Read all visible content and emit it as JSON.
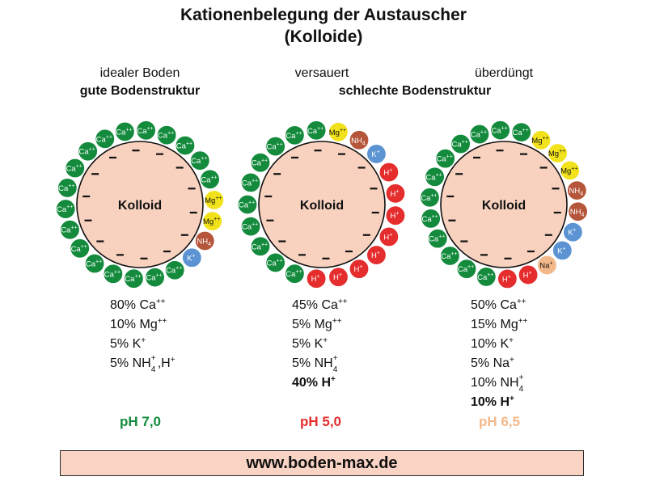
{
  "title_line1": "Kationenbelegung der Austauscher",
  "title_line2": "(Kolloide)",
  "colors": {
    "ca": "#138a3c",
    "mg": "#f2e21b",
    "nh4": "#b5553a",
    "k": "#5b93d3",
    "h": "#e52d2d",
    "na": "#f3b98a",
    "colloid": "#f8d2bf"
  },
  "core_label": "Kolloid",
  "footer": "www.boden-max.de",
  "columns": [
    {
      "state": "idealer Boden",
      "structure": "gute Bodenstruktur",
      "ph_label": "pH 7,0",
      "ph_color": "#138a3c",
      "stats": [
        {
          "pct": "80%",
          "ion": "Ca",
          "sup": "++"
        },
        {
          "pct": "10%",
          "ion": "Mg",
          "sup": "++"
        },
        {
          "pct": "5%",
          "ion": "K",
          "sup": "+"
        },
        {
          "pct": "5%",
          "ion": "NH",
          "sub": "4",
          "sup": "+",
          "ion2": ",H",
          "sup2": "+"
        }
      ],
      "ring": [
        {
          "ion": "Ca",
          "sup": "++",
          "type": "ca"
        },
        {
          "ion": "Ca",
          "sup": "++",
          "type": "ca"
        },
        {
          "ion": "Ca",
          "sup": "++",
          "type": "ca"
        },
        {
          "ion": "Ca",
          "sup": "++",
          "type": "ca"
        },
        {
          "ion": "Ca",
          "sup": "++",
          "type": "ca"
        },
        {
          "ion": "Ca",
          "sup": "++",
          "type": "ca"
        },
        {
          "ion": "Ca",
          "sup": "++",
          "type": "ca"
        },
        {
          "ion": "Mg",
          "sup": "++",
          "type": "mg"
        },
        {
          "ion": "Mg",
          "sup": "++",
          "type": "mg"
        },
        {
          "ion": "NH",
          "sub": "4",
          "type": "nh4"
        },
        {
          "ion": "K",
          "sup": "+",
          "type": "k"
        },
        {
          "ion": "Ca",
          "sup": "++",
          "type": "ca"
        },
        {
          "ion": "Ca",
          "sup": "++",
          "type": "ca"
        },
        {
          "ion": "Ca",
          "sup": "++",
          "type": "ca"
        },
        {
          "ion": "Ca",
          "sup": "++",
          "type": "ca"
        },
        {
          "ion": "Ca",
          "sup": "++",
          "type": "ca"
        },
        {
          "ion": "Ca",
          "sup": "++",
          "type": "ca"
        },
        {
          "ion": "Ca",
          "sup": "++",
          "type": "ca"
        },
        {
          "ion": "Ca",
          "sup": "++",
          "type": "ca"
        },
        {
          "ion": "Ca",
          "sup": "++",
          "type": "ca"
        },
        {
          "ion": "Ca",
          "sup": "++",
          "type": "ca"
        },
        {
          "ion": "Ca",
          "sup": "++",
          "type": "ca"
        }
      ]
    },
    {
      "state": "versauert",
      "structure": "schlechte Bodenstruktur",
      "ph_label": "pH 5,0",
      "ph_color": "#e52d2d",
      "stats": [
        {
          "pct": "45%",
          "ion": "Ca",
          "sup": "++"
        },
        {
          "pct": "5%",
          "ion": "Mg",
          "sup": "++"
        },
        {
          "pct": "5%",
          "ion": "K",
          "sup": "+"
        },
        {
          "pct": "5%",
          "ion": "NH",
          "sub": "4",
          "sup": "+"
        },
        {
          "pct": "40%",
          "ion": "H",
          "sup": "+",
          "bold": true
        }
      ],
      "ring": [
        {
          "ion": "NH",
          "sub": "4",
          "type": "nh4"
        },
        {
          "ion": "K",
          "sup": "+",
          "type": "k"
        },
        {
          "ion": "H",
          "sup": "+",
          "type": "h"
        },
        {
          "ion": "H",
          "sup": "+",
          "type": "h"
        },
        {
          "ion": "H",
          "sup": "+",
          "type": "h"
        },
        {
          "ion": "H",
          "sup": "+",
          "type": "h"
        },
        {
          "ion": "H",
          "sup": "+",
          "type": "h"
        },
        {
          "ion": "H",
          "sup": "+",
          "type": "h"
        },
        {
          "ion": "H",
          "sup": "+",
          "type": "h"
        },
        {
          "ion": "H",
          "sup": "+",
          "type": "h"
        },
        {
          "ion": "Ca",
          "sup": "++",
          "type": "ca"
        },
        {
          "ion": "Ca",
          "sup": "++",
          "type": "ca"
        },
        {
          "ion": "Ca",
          "sup": "++",
          "type": "ca"
        },
        {
          "ion": "Ca",
          "sup": "++",
          "type": "ca"
        },
        {
          "ion": "Ca",
          "sup": "++",
          "type": "ca"
        },
        {
          "ion": "Ca",
          "sup": "++",
          "type": "ca"
        },
        {
          "ion": "Ca",
          "sup": "++",
          "type": "ca"
        },
        {
          "ion": "Ca",
          "sup": "++",
          "type": "ca"
        },
        {
          "ion": "Ca",
          "sup": "++",
          "type": "ca"
        },
        {
          "ion": "Ca",
          "sup": "++",
          "type": "ca"
        },
        {
          "ion": "Mg",
          "sup": "++",
          "type": "mg"
        }
      ]
    },
    {
      "state": "überdüngt",
      "structure": "",
      "ph_label": "pH 6,5",
      "ph_color": "#f3b98a",
      "stats": [
        {
          "pct": "50%",
          "ion": "Ca",
          "sup": "++"
        },
        {
          "pct": "15%",
          "ion": "Mg",
          "sup": "++"
        },
        {
          "pct": "10%",
          "ion": "K",
          "sup": "+"
        },
        {
          "pct": "5%",
          "ion": "Na",
          "sup": "+"
        },
        {
          "pct": "10%",
          "ion": "NH",
          "sub": "4",
          "sup": "+"
        },
        {
          "pct": "10%",
          "ion": "H",
          "sup": "+",
          "bold": true
        }
      ],
      "ring": [
        {
          "ion": "Mg",
          "sup": "++",
          "type": "mg"
        },
        {
          "ion": "Mg",
          "sup": "++",
          "type": "mg"
        },
        {
          "ion": "Mg",
          "sup": "++",
          "type": "mg"
        },
        {
          "ion": "NH",
          "sub": "4",
          "type": "nh4"
        },
        {
          "ion": "NH",
          "sub": "4",
          "type": "nh4"
        },
        {
          "ion": "K",
          "sup": "+",
          "type": "k"
        },
        {
          "ion": "K",
          "sup": "+",
          "type": "k"
        },
        {
          "ion": "Na",
          "sup": "+",
          "type": "na"
        },
        {
          "ion": "H",
          "sup": "+",
          "type": "h"
        },
        {
          "ion": "H",
          "sup": "+",
          "type": "h"
        },
        {
          "ion": "Ca",
          "sup": "++",
          "type": "ca"
        },
        {
          "ion": "Ca",
          "sup": "++",
          "type": "ca"
        },
        {
          "ion": "Ca",
          "sup": "++",
          "type": "ca"
        },
        {
          "ion": "Ca",
          "sup": "++",
          "type": "ca"
        },
        {
          "ion": "Ca",
          "sup": "++",
          "type": "ca"
        },
        {
          "ion": "Ca",
          "sup": "++",
          "type": "ca"
        },
        {
          "ion": "Ca",
          "sup": "++",
          "type": "ca"
        },
        {
          "ion": "Ca",
          "sup": "++",
          "type": "ca"
        },
        {
          "ion": "Ca",
          "sup": "++",
          "type": "ca"
        },
        {
          "ion": "Ca",
          "sup": "++",
          "type": "ca"
        },
        {
          "ion": "Ca",
          "sup": "++",
          "type": "ca"
        },
        {
          "ion": "Ca",
          "sup": "++",
          "type": "ca"
        }
      ]
    }
  ]
}
